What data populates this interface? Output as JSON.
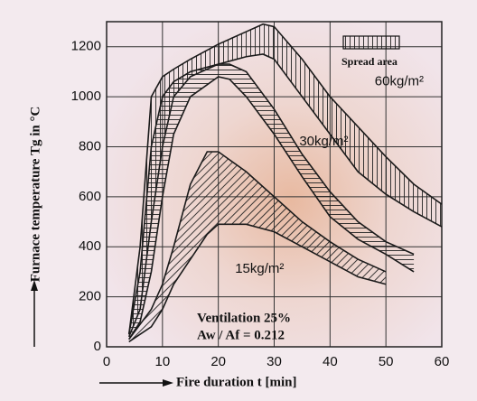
{
  "chart_data": {
    "type": "range-area",
    "xlabel": "Fire duration   t  [min]",
    "ylabel": "Furnace temperature  Tg  in  °C",
    "legend": "Spread area",
    "annotations": [
      "Ventilation  25%",
      "Aw / Af  =  0.212"
    ],
    "xlim": [
      0,
      60
    ],
    "xticks": [
      0,
      10,
      20,
      30,
      40,
      50,
      60
    ],
    "ylim": [
      0,
      1300
    ],
    "yticks": [
      0,
      200,
      400,
      600,
      800,
      1000,
      1200
    ],
    "grid": true,
    "color": "#1a1a1a",
    "series": [
      {
        "name": "60kg/m²",
        "x": [
          4,
          6,
          8,
          10,
          12,
          15,
          20,
          25,
          28,
          30,
          35,
          40,
          45,
          50,
          55,
          60
        ],
        "upper": [
          50,
          400,
          1000,
          1080,
          1110,
          1150,
          1210,
          1260,
          1290,
          1280,
          1150,
          1000,
          880,
          760,
          650,
          570
        ],
        "lower": [
          40,
          150,
          500,
          800,
          1000,
          1080,
          1130,
          1160,
          1170,
          1150,
          1000,
          850,
          700,
          610,
          540,
          480
        ]
      },
      {
        "name": "30kg/m²",
        "x": [
          4,
          6,
          8,
          10,
          12,
          15,
          20,
          22,
          25,
          30,
          35,
          40,
          45,
          50,
          55
        ],
        "upper": [
          50,
          300,
          800,
          1000,
          1060,
          1100,
          1130,
          1130,
          1100,
          950,
          770,
          620,
          500,
          420,
          370
        ],
        "lower": [
          30,
          100,
          300,
          600,
          850,
          1000,
          1080,
          1070,
          1000,
          850,
          680,
          520,
          430,
          370,
          300
        ]
      },
      {
        "name": "15kg/m²",
        "x": [
          4,
          8,
          10,
          12,
          15,
          18,
          20,
          25,
          30,
          35,
          40,
          45,
          50
        ],
        "upper": [
          30,
          150,
          250,
          400,
          650,
          780,
          780,
          700,
          600,
          500,
          420,
          350,
          300
        ],
        "lower": [
          20,
          80,
          150,
          250,
          350,
          450,
          490,
          490,
          460,
          400,
          340,
          280,
          250
        ]
      }
    ]
  }
}
